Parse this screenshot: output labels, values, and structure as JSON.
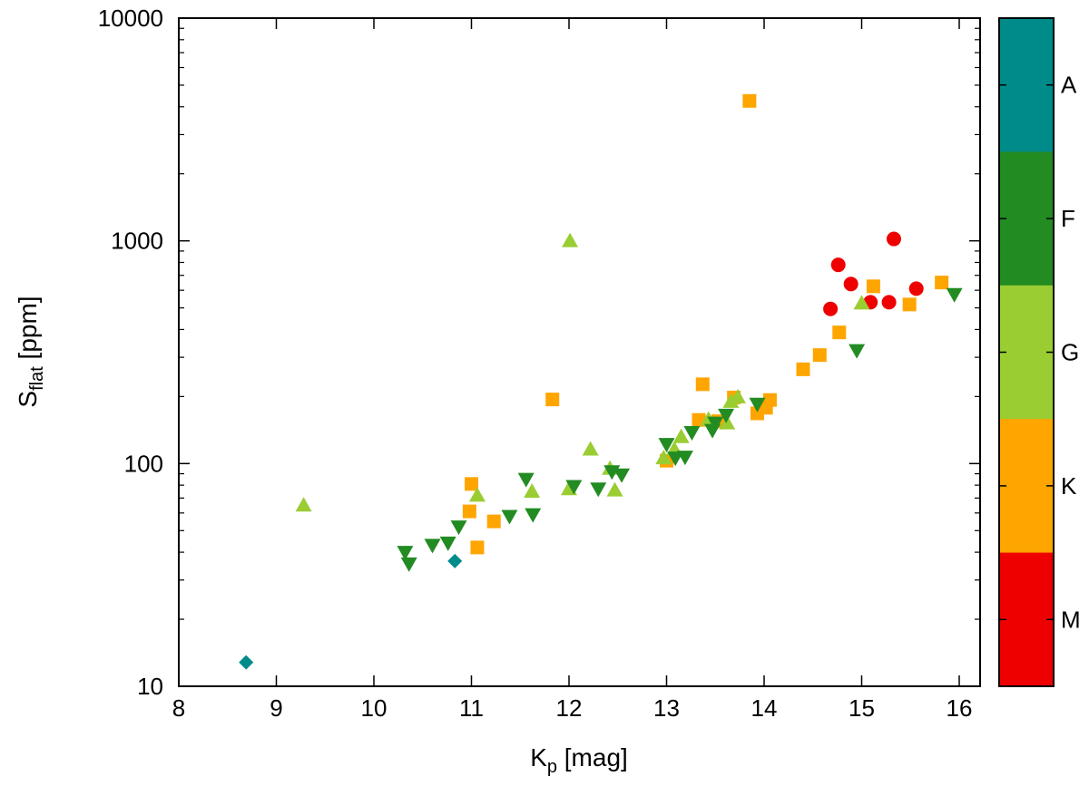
{
  "chart_data": {
    "type": "scatter",
    "title": "",
    "xlabel": {
      "main": "K",
      "sub": "p",
      "rest": " [mag]"
    },
    "ylabel": {
      "main": "S",
      "sub": "flat",
      "rest": " [ppm]"
    },
    "xlim": [
      8,
      16.4
    ],
    "ylim": [
      10,
      10000
    ],
    "yscale": "log",
    "xticks": [
      "8",
      "9",
      "10",
      "11",
      "12",
      "13",
      "14",
      "15",
      "16"
    ],
    "yticks": [
      "10",
      "100",
      "1000",
      "10000"
    ],
    "colorbar": {
      "labels": [
        "A",
        "F",
        "G",
        "K",
        "M"
      ],
      "colors": [
        "#008B8B",
        "#228B22",
        "#9ACD32",
        "#FFA500",
        "#EE0000"
      ]
    },
    "series": [
      {
        "name": "M",
        "marker": "circle",
        "color": "#EE0000",
        "points": [
          [
            14.68,
            495
          ],
          [
            14.76,
            780
          ],
          [
            14.89,
            640
          ],
          [
            15.09,
            530
          ],
          [
            15.28,
            530
          ],
          [
            15.33,
            1020
          ],
          [
            15.56,
            610
          ]
        ]
      },
      {
        "name": "K",
        "marker": "square",
        "color": "#FFA500",
        "points": [
          [
            10.98,
            61
          ],
          [
            11.0,
            81
          ],
          [
            11.06,
            42
          ],
          [
            11.23,
            55
          ],
          [
            11.83,
            194
          ],
          [
            13.0,
            103
          ],
          [
            13.33,
            157
          ],
          [
            13.37,
            227
          ],
          [
            13.53,
            155
          ],
          [
            13.69,
            198
          ],
          [
            13.85,
            4250
          ],
          [
            13.93,
            168
          ],
          [
            14.02,
            178
          ],
          [
            14.06,
            193
          ],
          [
            14.4,
            265
          ],
          [
            14.57,
            307
          ],
          [
            14.77,
            388
          ],
          [
            15.12,
            625
          ],
          [
            15.49,
            518
          ],
          [
            15.82,
            650
          ]
        ]
      },
      {
        "name": "G",
        "marker": "triangle-up",
        "color": "#9ACD32",
        "points": [
          [
            9.28,
            65
          ],
          [
            11.06,
            72
          ],
          [
            11.62,
            75
          ],
          [
            12.0,
            77
          ],
          [
            12.01,
            1000
          ],
          [
            12.22,
            116
          ],
          [
            12.42,
            95
          ],
          [
            12.47,
            76
          ],
          [
            12.97,
            106
          ],
          [
            13.08,
            116
          ],
          [
            13.15,
            132
          ],
          [
            13.43,
            158
          ],
          [
            13.62,
            152
          ],
          [
            13.66,
            190
          ],
          [
            13.73,
            199
          ],
          [
            15.0,
            525
          ]
        ]
      },
      {
        "name": "F",
        "marker": "triangle-down",
        "color": "#228B22",
        "points": [
          [
            10.32,
            40
          ],
          [
            10.36,
            35.5
          ],
          [
            10.6,
            43
          ],
          [
            10.76,
            44
          ],
          [
            10.87,
            52
          ],
          [
            11.39,
            58
          ],
          [
            11.56,
            85
          ],
          [
            11.63,
            59
          ],
          [
            12.05,
            79
          ],
          [
            12.3,
            77
          ],
          [
            12.44,
            92
          ],
          [
            12.54,
            89
          ],
          [
            13.0,
            122
          ],
          [
            13.09,
            106
          ],
          [
            13.19,
            107
          ],
          [
            13.26,
            138
          ],
          [
            13.47,
            141
          ],
          [
            13.5,
            152
          ],
          [
            13.61,
            165
          ],
          [
            13.93,
            185
          ],
          [
            14.95,
            322
          ],
          [
            15.95,
            575
          ]
        ]
      },
      {
        "name": "A",
        "marker": "diamond",
        "color": "#008B8B",
        "points": [
          [
            8.69,
            12.8
          ],
          [
            10.83,
            36.5
          ]
        ]
      }
    ]
  }
}
